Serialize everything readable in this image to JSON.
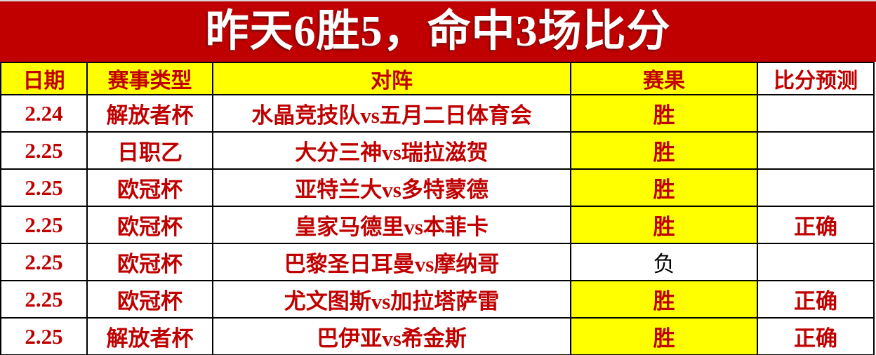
{
  "banner": {
    "title": "昨天6胜5，命中3场比分"
  },
  "table": {
    "headers": [
      "日期",
      "赛事类型",
      "对阵",
      "赛果",
      "比分预测"
    ],
    "rows": [
      {
        "date": "2.24",
        "league": "解放者杯",
        "match": "水晶竞技队vs五月二日体育会",
        "result": "胜",
        "highlight": true,
        "prediction": ""
      },
      {
        "date": "2.25",
        "league": "日职乙",
        "match": "大分三神vs瑞拉滋贺",
        "result": "胜",
        "highlight": true,
        "prediction": ""
      },
      {
        "date": "2.25",
        "league": "欧冠杯",
        "match": "亚特兰大vs多特蒙德",
        "result": "胜",
        "highlight": true,
        "prediction": ""
      },
      {
        "date": "2.25",
        "league": "欧冠杯",
        "match": "皇家马德里vs本菲卡",
        "result": "胜",
        "highlight": true,
        "prediction": "正确"
      },
      {
        "date": "2.25",
        "league": "欧冠杯",
        "match": "巴黎圣日耳曼vs摩纳哥",
        "result": "负",
        "highlight": false,
        "prediction": ""
      },
      {
        "date": "2.25",
        "league": "欧冠杯",
        "match": "尤文图斯vs加拉塔萨雷",
        "result": "胜",
        "highlight": true,
        "prediction": "正确"
      },
      {
        "date": "2.25",
        "league": "解放者杯",
        "match": "巴伊亚vs希金斯",
        "result": "胜",
        "highlight": true,
        "prediction": "正确"
      }
    ]
  },
  "colors": {
    "banner_red": "#c00000",
    "text_red": "#c00000",
    "highlight_yellow": "#ffff00",
    "loss_text": "#000000"
  }
}
